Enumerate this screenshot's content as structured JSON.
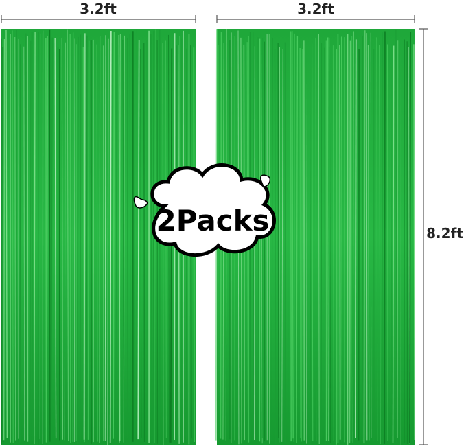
{
  "dimensions": {
    "width_left": "3.2ft",
    "width_right": "3.2ft",
    "height": "8.2ft"
  },
  "badge": "2Packs"
}
